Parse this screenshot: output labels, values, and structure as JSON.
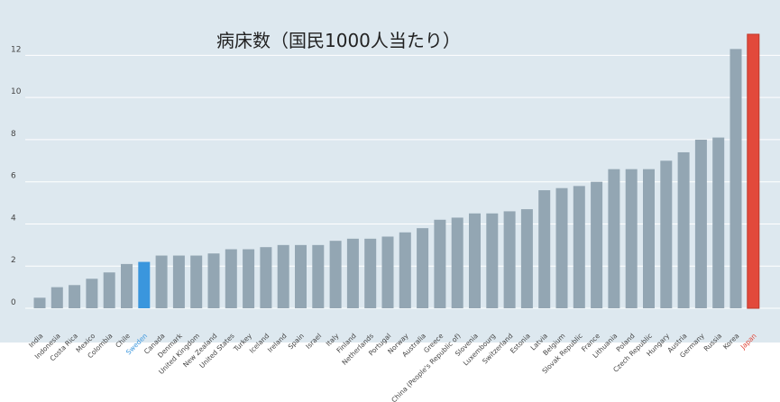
{
  "chart_data": {
    "type": "bar",
    "title": "病床数（国民1000人当たり）",
    "xlabel": "",
    "ylabel": "",
    "ylim": [
      0,
      13
    ],
    "yticks": [
      0,
      2,
      4,
      6,
      8,
      10,
      12
    ],
    "grid": true,
    "legend": "none",
    "categories": [
      "India",
      "Indonesia",
      "Costa Rica",
      "Mexico",
      "Colombia",
      "Chile",
      "Sweden",
      "Canada",
      "Denmark",
      "United Kingdom",
      "New Zealand",
      "United States",
      "Turkey",
      "Iceland",
      "Ireland",
      "Spain",
      "Israel",
      "Italy",
      "Finland",
      "Netherlands",
      "Portugal",
      "Norway",
      "Australia",
      "Greece",
      "China (People's Republic of)",
      "Slovenia",
      "Luxembourg",
      "Switzerland",
      "Estonia",
      "Latvia",
      "Belgium",
      "Slovak Republic",
      "France",
      "Lithuania",
      "Poland",
      "Czech Republic",
      "Hungary",
      "Austria",
      "Germany",
      "Russia",
      "Korea",
      "Japan"
    ],
    "values": [
      0.5,
      1.0,
      1.1,
      1.4,
      1.7,
      2.1,
      2.2,
      2.5,
      2.5,
      2.5,
      2.6,
      2.8,
      2.8,
      2.9,
      3.0,
      3.0,
      3.0,
      3.2,
      3.3,
      3.3,
      3.4,
      3.6,
      3.8,
      4.2,
      4.3,
      4.5,
      4.5,
      4.6,
      4.7,
      5.6,
      5.7,
      5.8,
      6.0,
      6.6,
      6.6,
      6.6,
      7.0,
      7.4,
      8.0,
      8.1,
      12.3,
      13.0
    ],
    "highlights": {
      "Sweden": "#3a96dd",
      "Japan": "#e2493b"
    },
    "colors": {
      "bar": "#93a6b3",
      "background": "#dde8ef",
      "grid": "#ffffff",
      "tick_text": "#444444"
    }
  }
}
